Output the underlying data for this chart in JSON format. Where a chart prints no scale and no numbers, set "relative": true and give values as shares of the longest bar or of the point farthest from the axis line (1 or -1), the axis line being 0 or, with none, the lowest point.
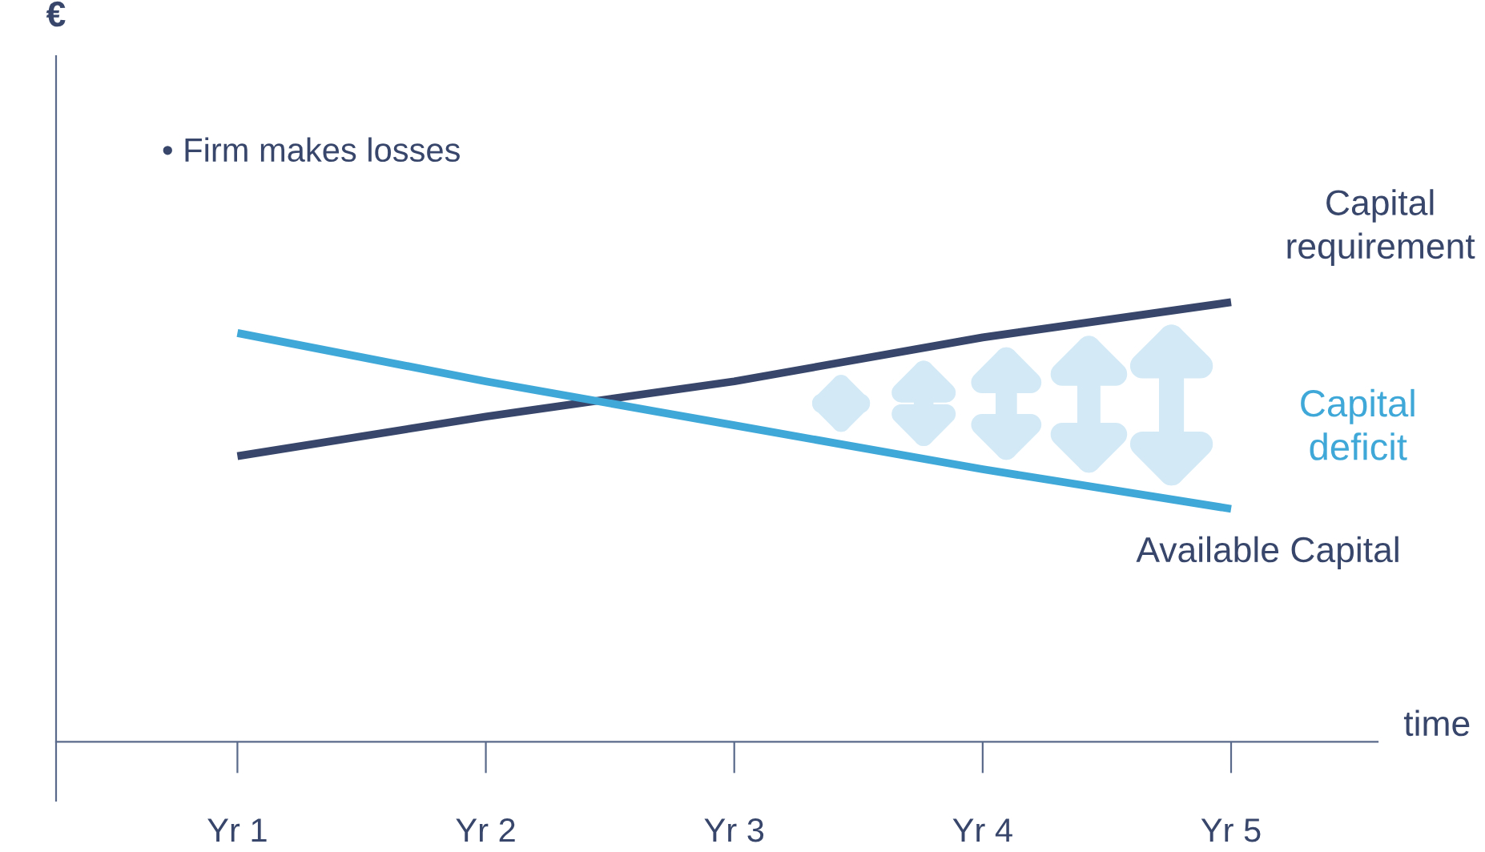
{
  "chart_data": {
    "type": "line",
    "relative": true,
    "xlabel": "time",
    "categories": [
      "Yr 1",
      "Yr 2",
      "Yr 3",
      "Yr 4",
      "Yr 5"
    ],
    "series": [
      {
        "name": "Capital requirement",
        "color": "#37466a",
        "values": [
          0.65,
          0.74,
          0.82,
          0.92,
          1.0
        ]
      },
      {
        "name": "Available Capital",
        "color": "#3fa8d8",
        "values": [
          0.93,
          0.82,
          0.72,
          0.62,
          0.53
        ]
      }
    ],
    "annotations": [
      "• Firm makes losses",
      "Capital deficit",
      "€"
    ],
    "legend": false,
    "grid": false,
    "marker": "none"
  }
}
